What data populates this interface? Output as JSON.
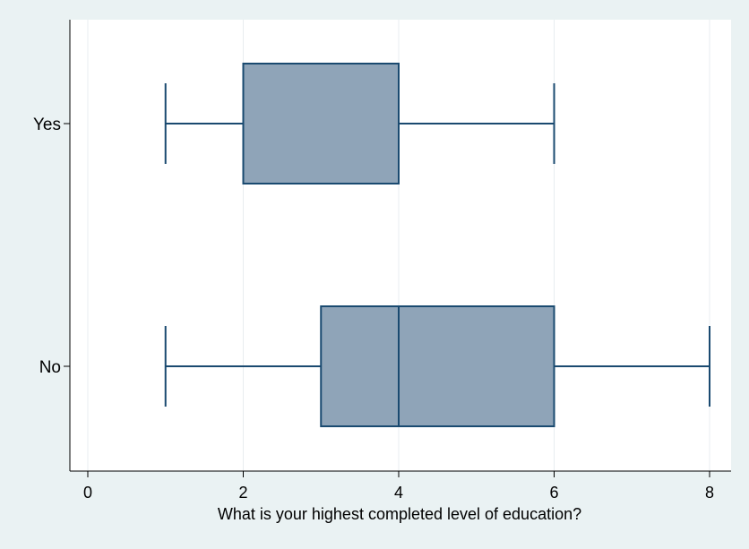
{
  "chart_data": {
    "type": "boxplot",
    "orientation": "horizontal",
    "xlabel": "What is your highest completed level of education?",
    "ylabel": "",
    "xlim": [
      0,
      8
    ],
    "xticks": [
      0,
      2,
      4,
      6,
      8
    ],
    "grid": "vertical",
    "categories": [
      "Yes",
      "No"
    ],
    "boxes": [
      {
        "label": "Yes",
        "whisker_low": 1,
        "q1": 2,
        "median": 4,
        "q3": 4,
        "whisker_high": 6
      },
      {
        "label": "No",
        "whisker_low": 1,
        "q1": 3,
        "median": 4,
        "q3": 6,
        "whisker_high": 8
      }
    ],
    "colors": {
      "box_fill": "#8fa4b8",
      "box_stroke": "#1a4a70",
      "grid": "#e8edf0",
      "plot_bg": "#ffffff",
      "page_bg": "#eaf2f3"
    }
  }
}
